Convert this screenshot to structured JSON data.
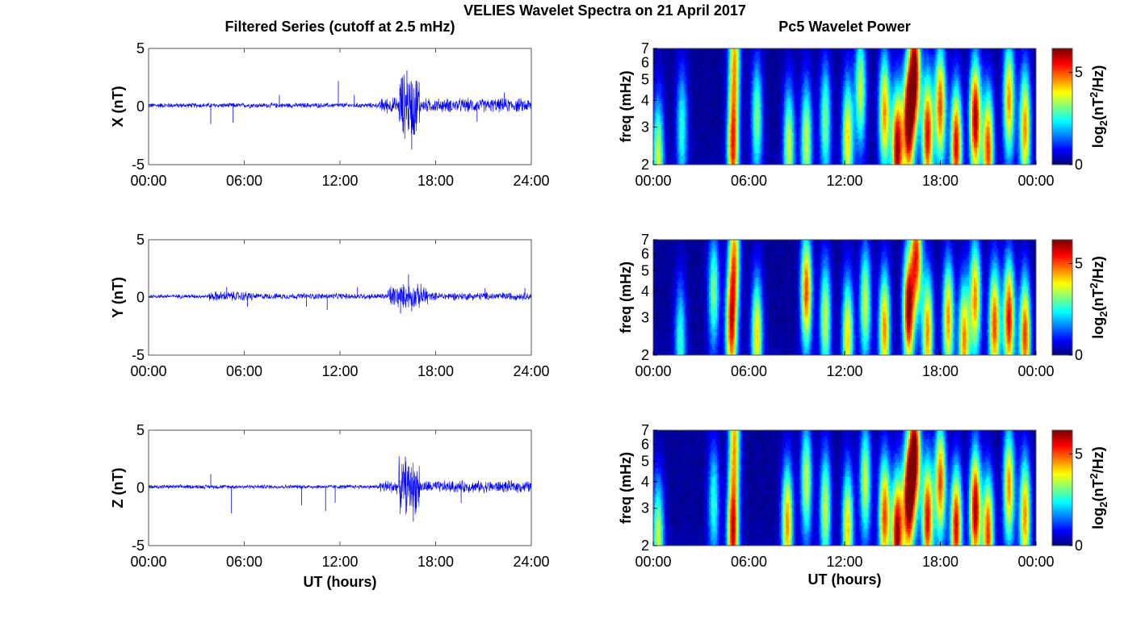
{
  "figure": {
    "title": "VELIES Wavelet Spectra on 21 April 2017",
    "left_title": "Filtered Series (cutoff at 2.5 mHz)",
    "right_title": "Pc5 Wavelet Power",
    "xlabel": "UT (hours)"
  },
  "chart_data": [
    {
      "type": "line",
      "component": "X",
      "ylabel": "X (nT)",
      "ylim": [
        -5,
        5
      ],
      "yticks": [
        "5",
        "0",
        "-5"
      ],
      "xlim_hours": [
        0,
        24
      ],
      "xticks": [
        "00:00",
        "06:00",
        "12:00",
        "18:00",
        "24:00"
      ],
      "color": "#0000ff",
      "baseline_nT": 0.1,
      "activity_segments_hours": [
        {
          "start": 0,
          "end": 14.5,
          "amplitude_nT": 0.25
        },
        {
          "start": 14.5,
          "end": 15.7,
          "amplitude_nT": 0.8
        },
        {
          "start": 15.7,
          "end": 17.0,
          "amplitude_nT": 3.3
        },
        {
          "start": 17.0,
          "end": 24.0,
          "amplitude_nT": 0.7
        }
      ],
      "spikes": [
        {
          "t": 3.9,
          "v": -1.5
        },
        {
          "t": 5.3,
          "v": -1.4
        },
        {
          "t": 8.2,
          "v": 1.0
        },
        {
          "t": 11.9,
          "v": 2.2
        },
        {
          "t": 12.9,
          "v": 1.0
        },
        {
          "t": 16.2,
          "v": 3.1
        },
        {
          "t": 16.5,
          "v": -3.7
        },
        {
          "t": 20.6,
          "v": -1.3
        },
        {
          "t": 22.3,
          "v": 1.2
        },
        {
          "t": 24.0,
          "v": -2.0
        }
      ]
    },
    {
      "type": "heatmap",
      "component": "X",
      "ylabel": "freq (mHz)",
      "yticks": [
        "2",
        "3",
        "4",
        "5",
        "6",
        "7"
      ],
      "ylim_mHz": [
        2,
        7
      ],
      "xlim_hours": [
        0,
        24
      ],
      "xticks": [
        "00:00",
        "06:00",
        "12:00",
        "18:00",
        "00:00"
      ],
      "colorbar_label": "log2(nT^2/Hz)",
      "colorbar_ticks": [
        "0",
        "5"
      ],
      "colorbar_range": [
        0,
        6.3
      ],
      "colormap": "jet",
      "bursts": [
        {
          "t": 0.3,
          "f": 2.2,
          "p": 3.5
        },
        {
          "t": 1.8,
          "f": 3.0,
          "p": 2.5
        },
        {
          "t": 5.0,
          "f": 2.4,
          "p": 5.0
        },
        {
          "t": 5.1,
          "f": 6.5,
          "p": 4.0
        },
        {
          "t": 6.5,
          "f": 3.3,
          "p": 3.0
        },
        {
          "t": 8.5,
          "f": 2.5,
          "p": 3.5
        },
        {
          "t": 9.6,
          "f": 2.6,
          "p": 3.5
        },
        {
          "t": 10.8,
          "f": 3.2,
          "p": 3.0
        },
        {
          "t": 12.2,
          "f": 2.7,
          "p": 4.0
        },
        {
          "t": 13.0,
          "f": 4.5,
          "p": 3.5
        },
        {
          "t": 14.5,
          "f": 3.5,
          "p": 4.5
        },
        {
          "t": 15.3,
          "f": 2.4,
          "p": 6.0
        },
        {
          "t": 16.0,
          "f": 3.2,
          "p": 6.3
        },
        {
          "t": 16.4,
          "f": 5.5,
          "p": 6.0
        },
        {
          "t": 17.2,
          "f": 2.8,
          "p": 5.5
        },
        {
          "t": 18.0,
          "f": 3.8,
          "p": 5.0
        },
        {
          "t": 19.0,
          "f": 2.5,
          "p": 5.5
        },
        {
          "t": 20.2,
          "f": 3.3,
          "p": 6.0
        },
        {
          "t": 21.0,
          "f": 2.4,
          "p": 5.0
        },
        {
          "t": 22.3,
          "f": 4.0,
          "p": 4.5
        },
        {
          "t": 23.3,
          "f": 3.0,
          "p": 4.5
        }
      ]
    },
    {
      "type": "line",
      "component": "Y",
      "ylabel": "Y (nT)",
      "ylim": [
        -5,
        5
      ],
      "yticks": [
        "5",
        "0",
        "-5"
      ],
      "xlim_hours": [
        0,
        24
      ],
      "xticks": [
        "00:00",
        "06:00",
        "12:00",
        "18:00",
        "24:00"
      ],
      "color": "#0000ff",
      "baseline_nT": 0.1,
      "activity_segments_hours": [
        {
          "start": 0,
          "end": 3.8,
          "amplitude_nT": 0.2
        },
        {
          "start": 3.8,
          "end": 6.5,
          "amplitude_nT": 0.5
        },
        {
          "start": 6.5,
          "end": 15.0,
          "amplitude_nT": 0.3
        },
        {
          "start": 15.0,
          "end": 17.5,
          "amplitude_nT": 1.2
        },
        {
          "start": 17.5,
          "end": 24.0,
          "amplitude_nT": 0.4
        }
      ],
      "spikes": [
        {
          "t": 4.9,
          "v": 0.9
        },
        {
          "t": 6.2,
          "v": -0.8
        },
        {
          "t": 9.9,
          "v": -0.8
        },
        {
          "t": 11.2,
          "v": -1.1
        },
        {
          "t": 13.1,
          "v": 0.9
        },
        {
          "t": 15.8,
          "v": -1.4
        },
        {
          "t": 16.3,
          "v": 2.0
        },
        {
          "t": 16.5,
          "v": -1.2
        },
        {
          "t": 21.1,
          "v": 0.8
        },
        {
          "t": 23.6,
          "v": 0.8
        }
      ]
    },
    {
      "type": "heatmap",
      "component": "Y",
      "ylabel": "freq (mHz)",
      "yticks": [
        "2",
        "3",
        "4",
        "5",
        "6",
        "7"
      ],
      "ylim_mHz": [
        2,
        7
      ],
      "xlim_hours": [
        0,
        24
      ],
      "xticks": [
        "00:00",
        "06:00",
        "12:00",
        "18:00",
        "00:00"
      ],
      "colorbar_label": "log2(nT^2/Hz)",
      "colorbar_ticks": [
        "0",
        "5"
      ],
      "colorbar_range": [
        0,
        6.3
      ],
      "colormap": "jet",
      "bursts": [
        {
          "t": 1.7,
          "f": 2.4,
          "p": 2.5
        },
        {
          "t": 3.8,
          "f": 4.0,
          "p": 3.0
        },
        {
          "t": 4.9,
          "f": 2.7,
          "p": 5.0
        },
        {
          "t": 5.1,
          "f": 6.0,
          "p": 4.0
        },
        {
          "t": 6.5,
          "f": 2.5,
          "p": 4.0
        },
        {
          "t": 9.6,
          "f": 4.0,
          "p": 5.0
        },
        {
          "t": 10.8,
          "f": 3.0,
          "p": 3.5
        },
        {
          "t": 12.2,
          "f": 2.5,
          "p": 4.0
        },
        {
          "t": 13.3,
          "f": 3.5,
          "p": 3.5
        },
        {
          "t": 14.5,
          "f": 2.7,
          "p": 4.5
        },
        {
          "t": 16.0,
          "f": 3.3,
          "p": 6.0
        },
        {
          "t": 16.5,
          "f": 6.0,
          "p": 5.0
        },
        {
          "t": 17.2,
          "f": 2.6,
          "p": 4.5
        },
        {
          "t": 18.5,
          "f": 3.0,
          "p": 4.5
        },
        {
          "t": 19.5,
          "f": 2.4,
          "p": 4.5
        },
        {
          "t": 20.2,
          "f": 3.7,
          "p": 4.5
        },
        {
          "t": 21.4,
          "f": 2.8,
          "p": 5.0
        },
        {
          "t": 22.3,
          "f": 3.0,
          "p": 5.5
        },
        {
          "t": 23.3,
          "f": 2.5,
          "p": 5.0
        }
      ]
    },
    {
      "type": "line",
      "component": "Z",
      "ylabel": "Z (nT)",
      "ylim": [
        -5,
        5
      ],
      "yticks": [
        "5",
        "0",
        "-5"
      ],
      "xlim_hours": [
        0,
        24
      ],
      "xticks": [
        "00:00",
        "06:00",
        "12:00",
        "18:00",
        "24:00"
      ],
      "color": "#0000ff",
      "baseline_nT": 0.1,
      "activity_segments_hours": [
        {
          "start": 0,
          "end": 14.5,
          "amplitude_nT": 0.2
        },
        {
          "start": 14.5,
          "end": 15.7,
          "amplitude_nT": 0.7
        },
        {
          "start": 15.7,
          "end": 17.0,
          "amplitude_nT": 2.7
        },
        {
          "start": 17.0,
          "end": 24.0,
          "amplitude_nT": 0.6
        }
      ],
      "spikes": [
        {
          "t": 3.9,
          "v": 1.2
        },
        {
          "t": 5.2,
          "v": -2.2
        },
        {
          "t": 9.6,
          "v": -1.5
        },
        {
          "t": 11.1,
          "v": -2.0
        },
        {
          "t": 11.7,
          "v": -1.3
        },
        {
          "t": 16.1,
          "v": 2.7
        },
        {
          "t": 16.6,
          "v": -2.9
        },
        {
          "t": 19.6,
          "v": -1.3
        },
        {
          "t": 24.0,
          "v": -1.8
        }
      ]
    },
    {
      "type": "heatmap",
      "component": "Z",
      "ylabel": "freq (mHz)",
      "yticks": [
        "2",
        "3",
        "4",
        "5",
        "6",
        "7"
      ],
      "ylim_mHz": [
        2,
        7
      ],
      "xlim_hours": [
        0,
        24
      ],
      "xticks": [
        "00:00",
        "06:00",
        "12:00",
        "18:00",
        "00:00"
      ],
      "colorbar_label": "log2(nT^2/Hz)",
      "colorbar_ticks": [
        "0",
        "5"
      ],
      "colorbar_range": [
        0,
        6.3
      ],
      "colormap": "jet",
      "bursts": [
        {
          "t": 0.3,
          "f": 2.2,
          "p": 3.5
        },
        {
          "t": 3.8,
          "f": 3.2,
          "p": 2.5
        },
        {
          "t": 5.0,
          "f": 2.3,
          "p": 5.5
        },
        {
          "t": 5.1,
          "f": 6.5,
          "p": 4.0
        },
        {
          "t": 8.4,
          "f": 2.6,
          "p": 4.5
        },
        {
          "t": 9.6,
          "f": 4.0,
          "p": 3.5
        },
        {
          "t": 10.8,
          "f": 3.0,
          "p": 3.5
        },
        {
          "t": 12.2,
          "f": 2.5,
          "p": 4.0
        },
        {
          "t": 13.3,
          "f": 4.0,
          "p": 3.5
        },
        {
          "t": 14.5,
          "f": 2.8,
          "p": 5.0
        },
        {
          "t": 15.3,
          "f": 2.3,
          "p": 6.0
        },
        {
          "t": 16.0,
          "f": 3.3,
          "p": 6.3
        },
        {
          "t": 16.4,
          "f": 5.5,
          "p": 6.0
        },
        {
          "t": 17.2,
          "f": 2.7,
          "p": 5.5
        },
        {
          "t": 18.0,
          "f": 4.0,
          "p": 5.0
        },
        {
          "t": 19.0,
          "f": 2.5,
          "p": 5.5
        },
        {
          "t": 20.2,
          "f": 3.0,
          "p": 6.0
        },
        {
          "t": 21.0,
          "f": 2.3,
          "p": 5.0
        },
        {
          "t": 22.3,
          "f": 3.8,
          "p": 4.5
        },
        {
          "t": 23.3,
          "f": 2.8,
          "p": 4.5
        }
      ]
    }
  ]
}
